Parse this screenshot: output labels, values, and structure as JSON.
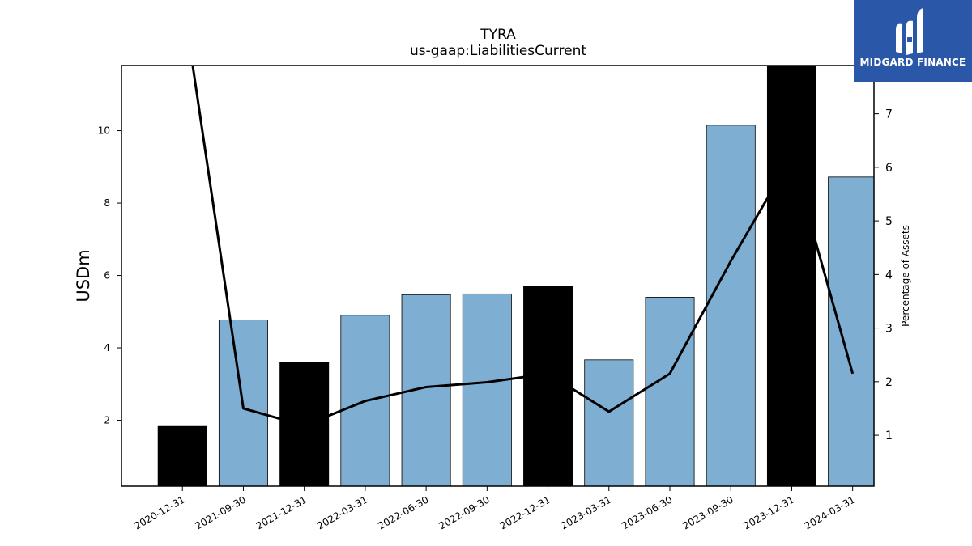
{
  "chart_data": {
    "type": "bar",
    "title": "TYRA",
    "subtitle": "us-gaap:LiabilitiesCurrent",
    "ylabel": "USDm",
    "y2label": "Percentage of Assets",
    "categories": [
      "2020-12-31",
      "2021-09-30",
      "2021-12-31",
      "2022-03-31",
      "2022-06-30",
      "2022-09-30",
      "2022-12-31",
      "2023-03-31",
      "2023-06-30",
      "2023-09-30",
      "2023-12-31",
      "2024-03-31"
    ],
    "series": [
      {
        "values": [
          1.83,
          4.77,
          3.6,
          4.9,
          5.47,
          5.49,
          5.7,
          3.67,
          5.4,
          10.15,
          11.8,
          8.72
        ],
        "colors": [
          "#000000",
          "#7eaed2",
          "#000000",
          "#7eaed2",
          "#7eaed2",
          "#7eaed2",
          "#000000",
          "#7eaed2",
          "#7eaed2",
          "#7eaed2",
          "#000000",
          "#7eaed2"
        ]
      },
      {
        "type": "line",
        "axis": "right",
        "values": [
          9.2,
          1.5,
          1.18,
          1.64,
          1.9,
          1.99,
          2.15,
          1.44,
          2.15,
          4.25,
          6.2,
          2.15
        ]
      }
    ],
    "ylim": [
      0.18,
      11.8
    ],
    "y2lim": [
      0.05,
      7.9
    ],
    "yticks": [
      2,
      4,
      6,
      8,
      10
    ],
    "y2ticks": [
      1,
      2,
      3,
      4,
      5,
      6,
      7
    ],
    "grid": false,
    "colors": {
      "bar_highlight": "#000000",
      "bar_normal": "#7eaed2",
      "line": "#000000"
    }
  },
  "logo": {
    "text": "MIDGARD FINANCE",
    "background": "#2b57a8"
  }
}
